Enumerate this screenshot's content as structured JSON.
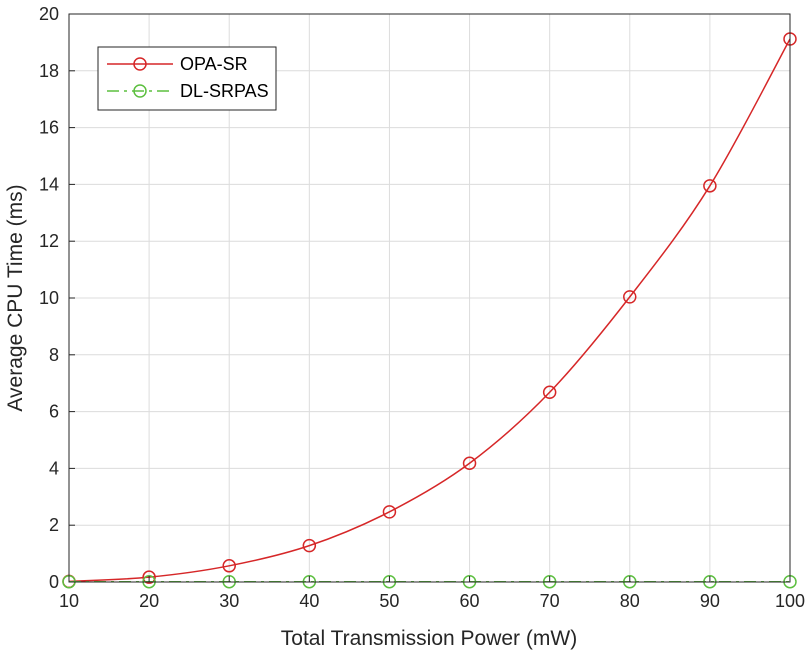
{
  "chart_data": {
    "type": "line",
    "title": "",
    "xlabel": "Total Transmission Power (mW)",
    "ylabel": "Average CPU Time (ms)",
    "x": [
      10,
      20,
      30,
      40,
      50,
      60,
      70,
      80,
      90,
      100
    ],
    "xlim": [
      10,
      100
    ],
    "ylim": [
      0,
      20
    ],
    "xticks": [
      "10",
      "20",
      "30",
      "40",
      "50",
      "60",
      "70",
      "80",
      "90",
      "100"
    ],
    "yticks": [
      "0",
      "2",
      "4",
      "6",
      "8",
      "10",
      "12",
      "14",
      "16",
      "18",
      "20"
    ],
    "grid": true,
    "legend_position": "top-left",
    "series": [
      {
        "name": "OPA-SR",
        "color": "#d62728",
        "line_style": "solid",
        "marker": "circle",
        "values": [
          0.02,
          0.17,
          0.57,
          1.28,
          2.47,
          4.18,
          6.68,
          10.04,
          13.95,
          19.12
        ]
      },
      {
        "name": "DL-SRPAS",
        "color": "#5cbf3f",
        "line_style": "dash-dot",
        "marker": "circle",
        "values": [
          0.01,
          0.01,
          0.01,
          0.01,
          0.01,
          0.01,
          0.01,
          0.01,
          0.01,
          0.01
        ]
      }
    ]
  }
}
